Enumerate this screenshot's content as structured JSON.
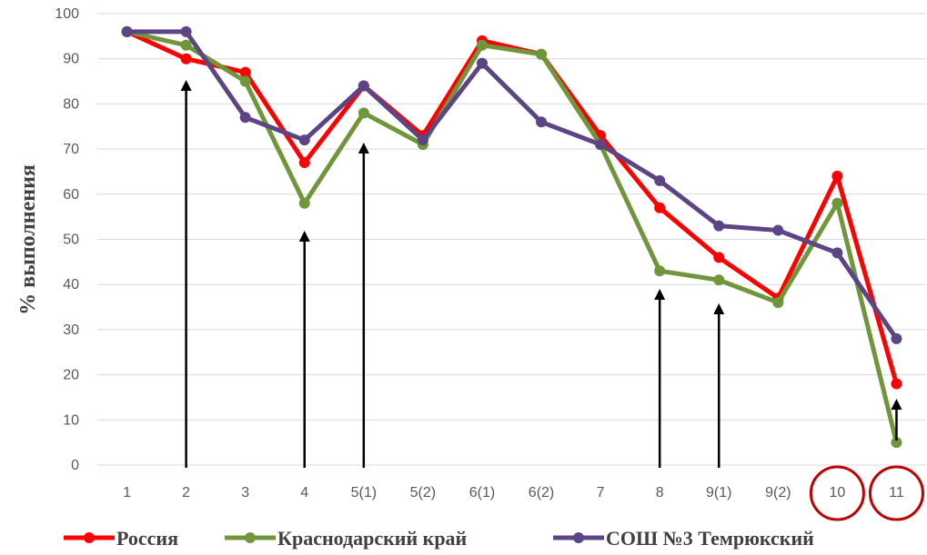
{
  "chart_data": {
    "type": "line",
    "categories": [
      "1",
      "2",
      "3",
      "4",
      "5(1)",
      "5(2)",
      "6(1)",
      "6(2)",
      "7",
      "8",
      "9(1)",
      "9(2)",
      "10",
      "11"
    ],
    "ylabel": "% выполнения",
    "xlabel": "",
    "ylim": [
      0,
      100
    ],
    "yticks": [
      0,
      10,
      20,
      30,
      40,
      50,
      60,
      70,
      80,
      90,
      100
    ],
    "grid": true,
    "legend": "bottom",
    "series": [
      {
        "name": "Россия",
        "color": "#ff0000",
        "values": [
          96,
          90,
          87,
          67,
          84,
          73,
          94,
          91,
          73,
          57,
          46,
          37,
          64,
          18
        ]
      },
      {
        "name": "Краснодарский край",
        "color": "#70963c",
        "values": [
          96,
          93,
          85,
          58,
          78,
          71,
          93,
          91,
          71,
          43,
          41,
          36,
          58,
          5
        ]
      },
      {
        "name": "СОШ №3 Темрюкский",
        "color": "#5b4585",
        "values": [
          96,
          96,
          77,
          72,
          84,
          72,
          89,
          76,
          71,
          63,
          53,
          52,
          47,
          28
        ]
      }
    ],
    "annotations": {
      "arrows_at_categories": [
        "2",
        "4",
        "5(1)",
        "8",
        "9(1)",
        "11"
      ],
      "circled_categories": [
        "10",
        "11"
      ],
      "arrow_color": "#000000",
      "circle_color": "#c00000"
    }
  }
}
